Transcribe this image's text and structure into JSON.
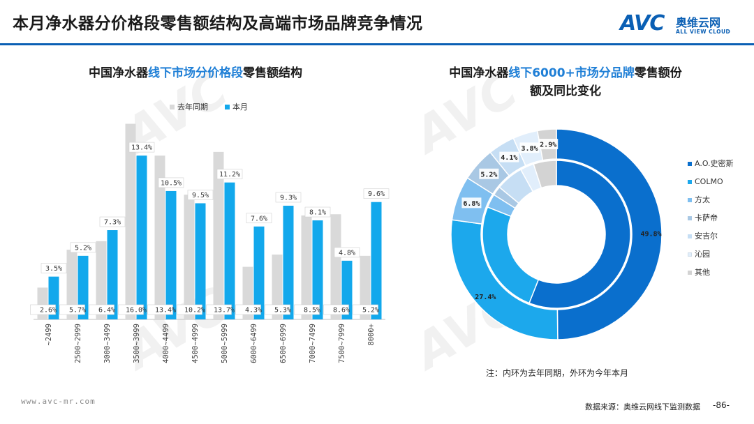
{
  "header": {
    "title": "本月净水器分价格段零售额结构及高端市场品牌竞争情况",
    "logo_text": "AVC",
    "logo_cn": "奥维云网",
    "logo_en": "ALL VIEW CLOUD"
  },
  "left_chart_title": {
    "part1": "中国净水器",
    "part2": "线下市场分价格段",
    "part3": "零售额结构"
  },
  "right_chart_title": {
    "part1": "中国净水器",
    "part2": "线下6000+市场分品牌",
    "part3": "零售额份",
    "line2": "额及同比变化"
  },
  "chart_data": [
    {
      "type": "bar",
      "categories": [
        "~2499",
        "2500~2999",
        "3000~3499",
        "3500~3999",
        "4000~4499",
        "4500~4999",
        "5000~5999",
        "6000~6499",
        "6500~6999",
        "7000~7499",
        "7500~7999",
        "8000+"
      ],
      "series": [
        {
          "name": "去年同期",
          "color": "#d9d9d9",
          "values": [
            2.6,
            5.7,
            6.4,
            16.0,
            13.4,
            10.2,
            13.7,
            4.3,
            5.3,
            8.5,
            8.6,
            5.2
          ],
          "labels": [
            "2.6%",
            "5.7%",
            "6.4%",
            "16.0%",
            "13.4%",
            "10.2%",
            "13.7%",
            "4.3%",
            "5.3%",
            "8.5%",
            "8.6%",
            "5.2%"
          ]
        },
        {
          "name": "本月",
          "color": "#12a8ec",
          "values": [
            3.5,
            5.2,
            7.3,
            13.4,
            10.5,
            9.5,
            11.2,
            7.6,
            9.3,
            8.1,
            4.8,
            9.6
          ],
          "labels": [
            "3.5%",
            "5.2%",
            "7.3%",
            "13.4%",
            "10.5%",
            "9.5%",
            "11.2%",
            "7.6%",
            "9.3%",
            "8.1%",
            "4.8%",
            "9.6%"
          ]
        }
      ],
      "ylim": [
        0,
        17
      ],
      "grid": false,
      "legend": "top-center"
    },
    {
      "type": "pie",
      "variant": "double-donut",
      "categories": [
        "A.O.史密斯",
        "COLMO",
        "方太",
        "卡萨帝",
        "安吉尔",
        "沁园",
        "其他"
      ],
      "colors": [
        "#0a6fcd",
        "#1ca8ec",
        "#7fbff0",
        "#a9c8e4",
        "#c6def4",
        "#e1eefb",
        "#d3d3d3"
      ],
      "outer_ring_label": "本月",
      "outer_values": [
        49.8,
        27.4,
        6.8,
        5.2,
        4.1,
        3.8,
        2.9
      ],
      "outer_labels": [
        "49.8%",
        "27.4%",
        "6.8%",
        "5.2%",
        "4.1%",
        "3.8%",
        "2.9%"
      ],
      "inner_ring_label": "去年同期",
      "inner_values": [
        56,
        25,
        3,
        2,
        6,
        3,
        5
      ],
      "legend": "right"
    }
  ],
  "pie_legend": [
    {
      "label": "A.O.史密斯",
      "color": "#0a6fcd"
    },
    {
      "label": "COLMO",
      "color": "#1ca8ec"
    },
    {
      "label": "方太",
      "color": "#7fbff0"
    },
    {
      "label": "卡萨帝",
      "color": "#a9c8e4"
    },
    {
      "label": "安吉尔",
      "color": "#c6def4"
    },
    {
      "label": "沁园",
      "color": "#e1eefb"
    },
    {
      "label": "其他",
      "color": "#d3d3d3"
    }
  ],
  "bar_legend": [
    {
      "label": "去年同期",
      "color": "#d9d9d9"
    },
    {
      "label": "本月",
      "color": "#12a8ec"
    }
  ],
  "footnote": "注：内环为去年同期，外环为今年本月",
  "website": "www.avc-mr.com",
  "source": "数据来源：奥维云网线下监测数据",
  "page_number": "-86-",
  "colors": {
    "accent": "#0a5fb4",
    "highlight": "#1f7fd6"
  }
}
